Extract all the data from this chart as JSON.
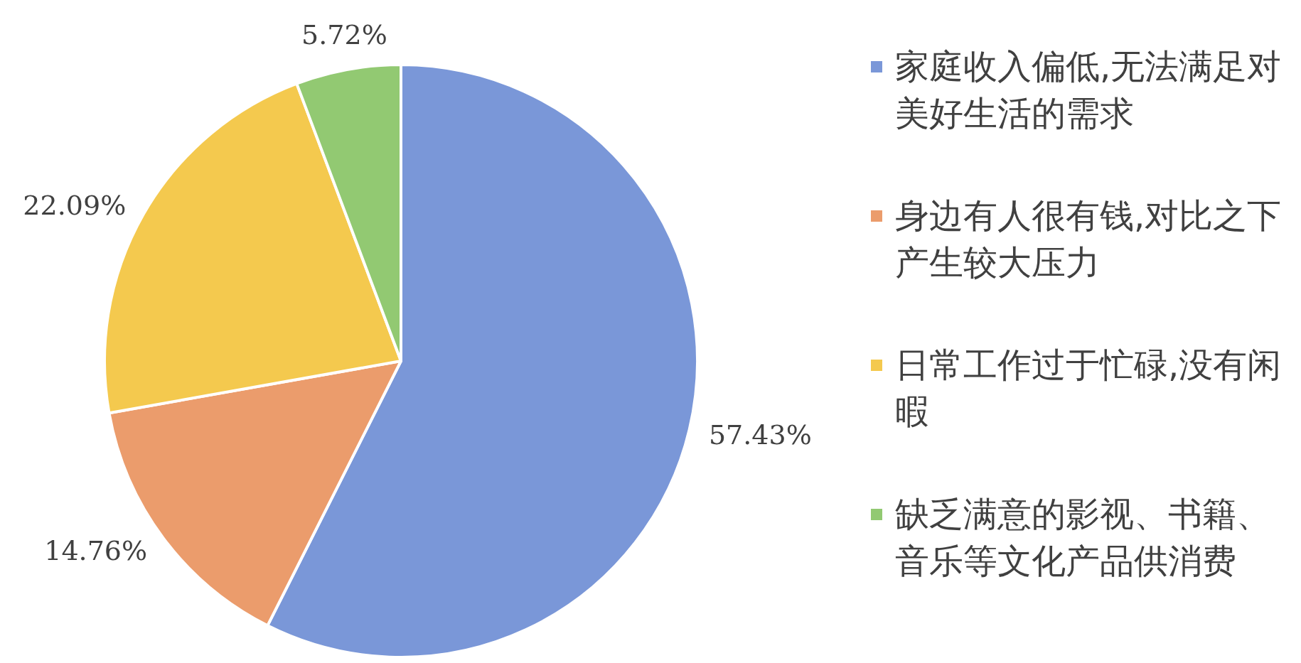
{
  "chart_data": {
    "type": "pie",
    "categories": [
      "家庭收入偏低,无法满足对美好生活的需求",
      "身边有人很有钱,对比之下产生较大压力",
      "日常工作过于忙碌,没有闲暇",
      "缺乏满意的影视、书籍、音乐等文化产品供消费"
    ],
    "values": [
      57.43,
      14.76,
      22.09,
      5.72
    ],
    "colors": [
      "#7a97d8",
      "#eb9c6c",
      "#f4c94e",
      "#92c972"
    ],
    "value_labels": [
      "57.43%",
      "14.76%",
      "22.09%",
      "5.72%"
    ],
    "legend": "right"
  }
}
